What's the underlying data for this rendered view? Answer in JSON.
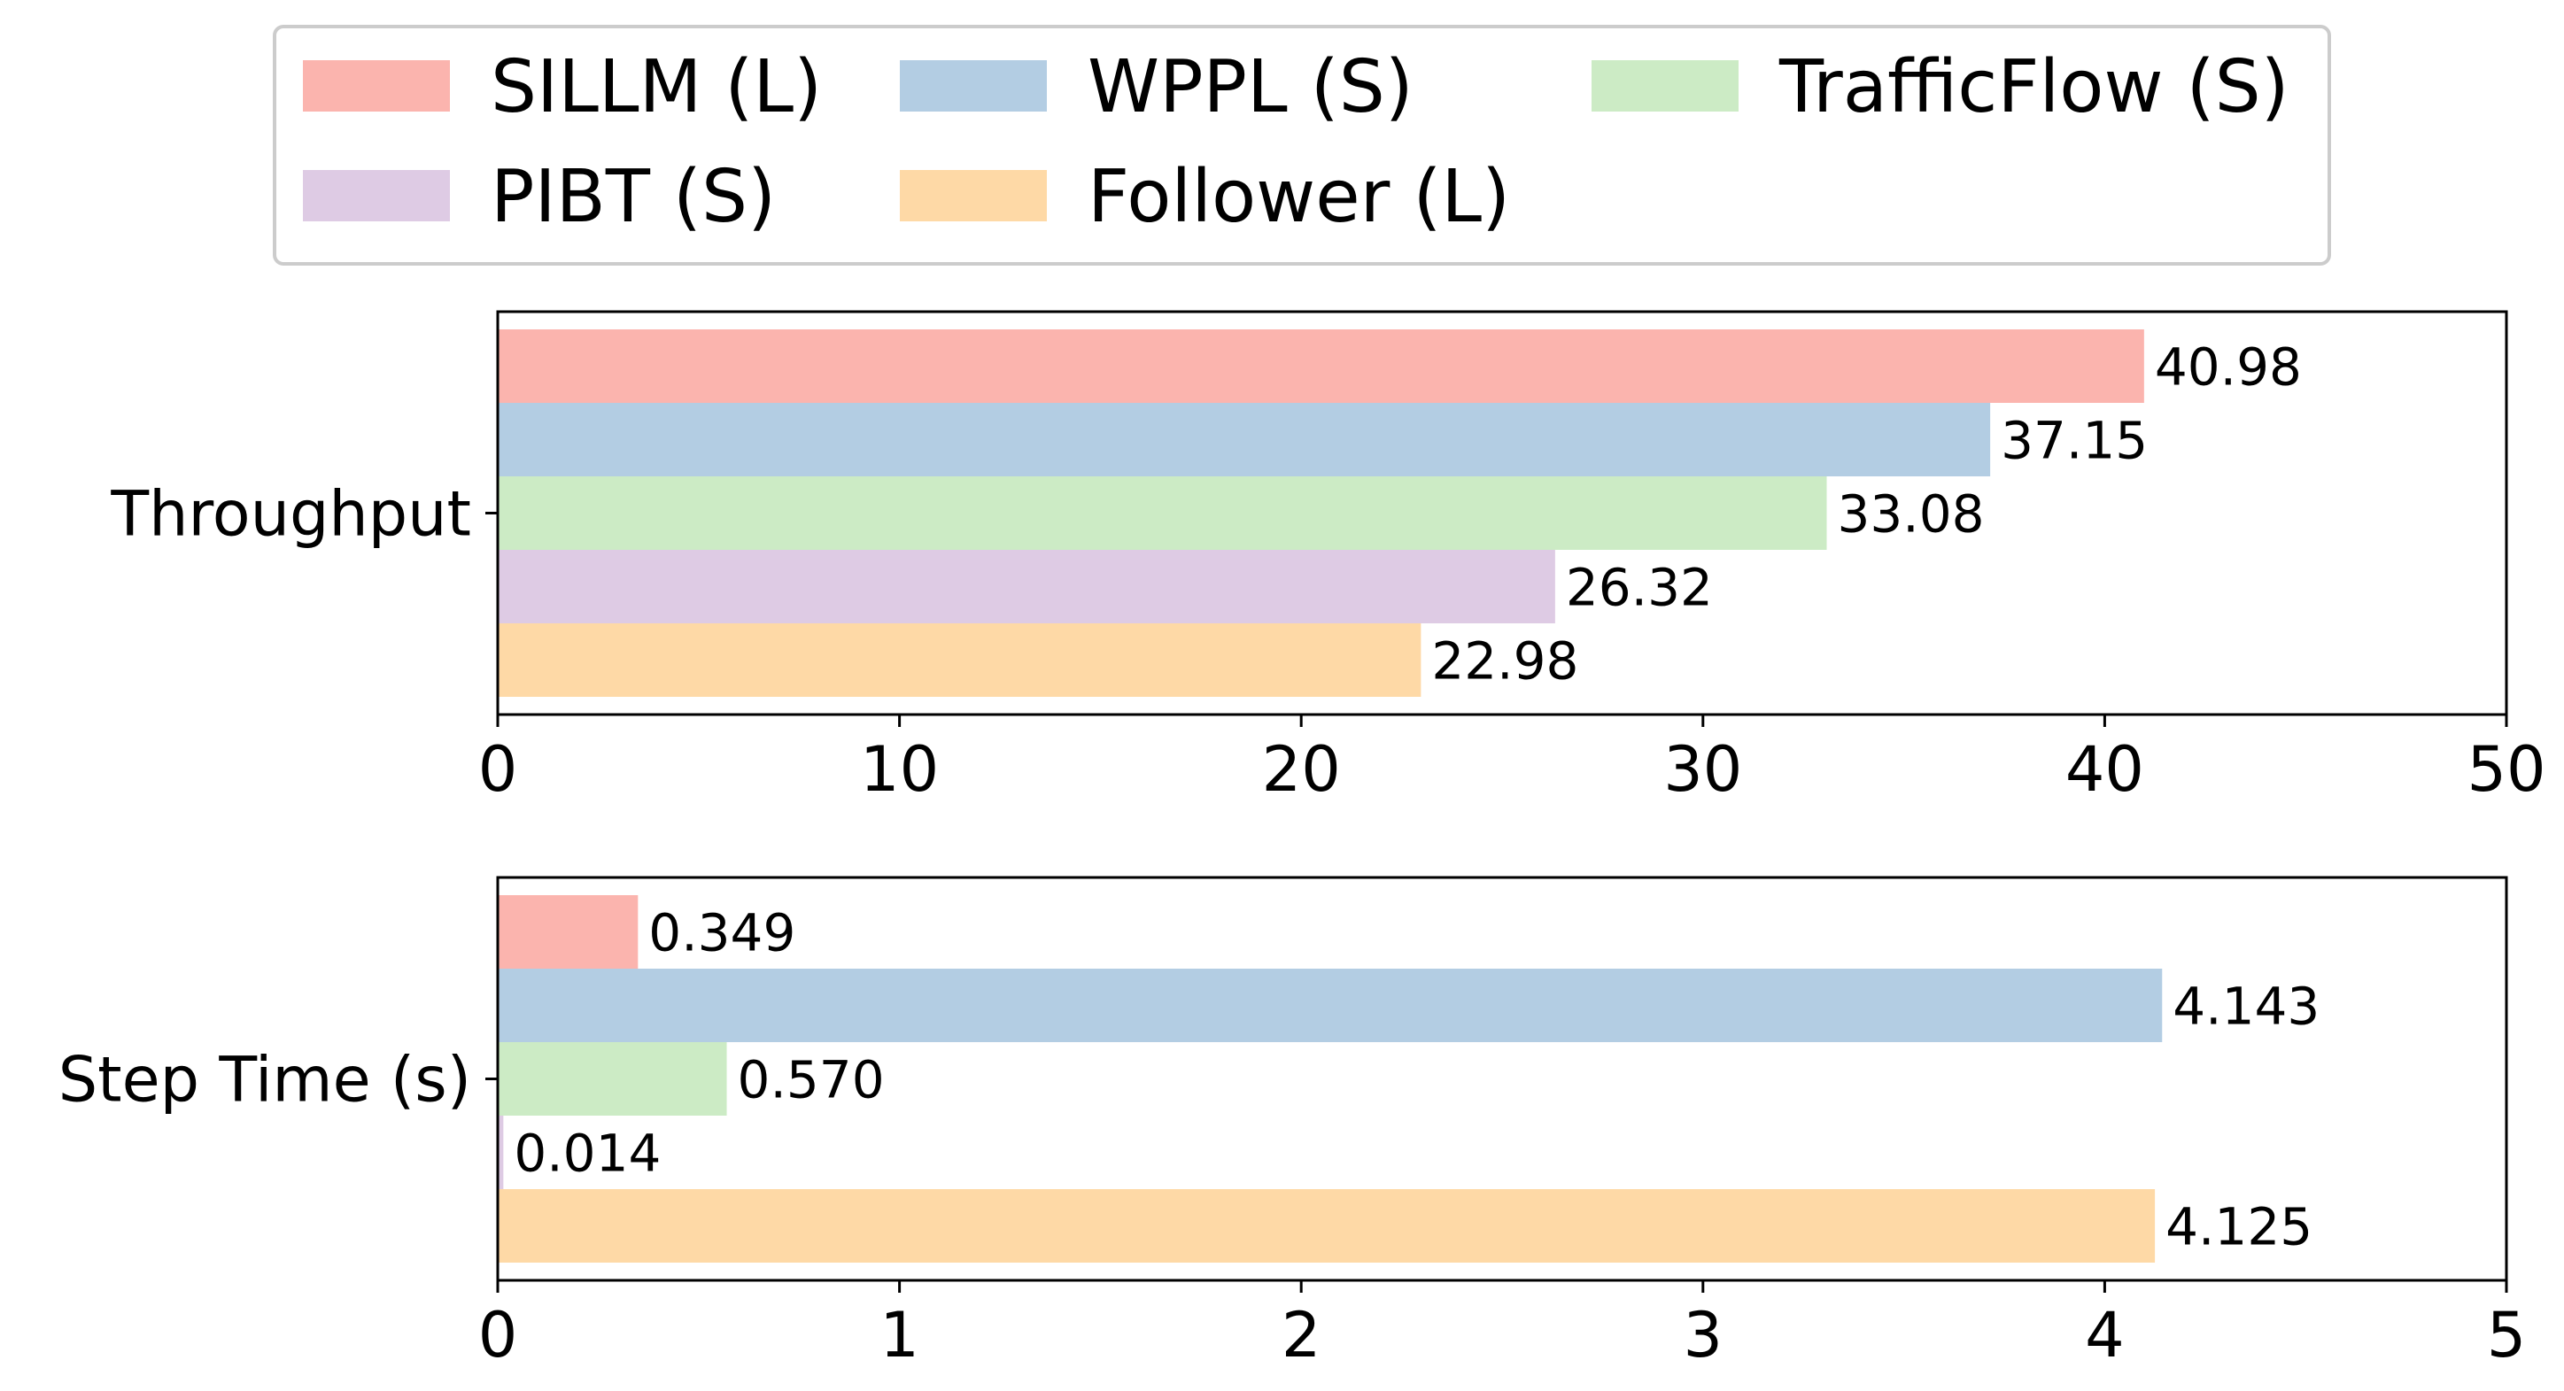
{
  "chart_data": {
    "type": "bar",
    "orientation": "horizontal",
    "legend": {
      "placement": "top",
      "entries": [
        {
          "name": "SILLM (L)",
          "color": "#fbb4ae"
        },
        {
          "name": "WPPL (S)",
          "color": "#b3cde3"
        },
        {
          "name": "TrafficFlow (S)",
          "color": "#ccebc5"
        },
        {
          "name": "PIBT (S)",
          "color": "#decbe4"
        },
        {
          "name": "Follower (L)",
          "color": "#fed9a6"
        }
      ]
    },
    "panels": [
      {
        "category": "Throughput",
        "xlim": [
          0,
          50
        ],
        "ticks": [
          "0",
          "10",
          "20",
          "30",
          "40",
          "50"
        ],
        "series": [
          {
            "name": "SILLM (L)",
            "value": 40.98,
            "label": "40.98"
          },
          {
            "name": "WPPL (S)",
            "value": 37.15,
            "label": "37.15"
          },
          {
            "name": "TrafficFlow (S)",
            "value": 33.08,
            "label": "33.08"
          },
          {
            "name": "PIBT (S)",
            "value": 26.32,
            "label": "26.32"
          },
          {
            "name": "Follower (L)",
            "value": 22.98,
            "label": "22.98"
          }
        ]
      },
      {
        "category": "Step Time (s)",
        "xlim": [
          0,
          5
        ],
        "ticks": [
          "0",
          "1",
          "2",
          "3",
          "4",
          "5"
        ],
        "series": [
          {
            "name": "SILLM (L)",
            "value": 0.349,
            "label": "0.349"
          },
          {
            "name": "WPPL (S)",
            "value": 4.143,
            "label": "4.143"
          },
          {
            "name": "TrafficFlow (S)",
            "value": 0.57,
            "label": "0.570"
          },
          {
            "name": "PIBT (S)",
            "value": 0.014,
            "label": "0.014"
          },
          {
            "name": "Follower (L)",
            "value": 4.125,
            "label": "4.125"
          }
        ]
      }
    ]
  }
}
